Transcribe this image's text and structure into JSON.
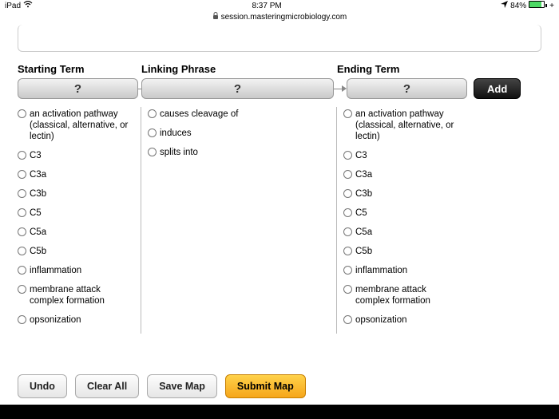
{
  "status": {
    "device": "iPad",
    "wifi": "▾",
    "time": "8:37 PM",
    "nav": "➤",
    "battery": "84%",
    "charge": "+"
  },
  "url": {
    "lock": "🔒",
    "host": "session.masteringmicrobiology.com"
  },
  "headers": {
    "start": "Starting Term",
    "link": "Linking Phrase",
    "end": "Ending Term"
  },
  "placeholder": "?",
  "add": "Add",
  "startOpts": [
    "an activation pathway (classical, alternative, or lectin)",
    "C3",
    "C3a",
    "C3b",
    "C5",
    "C5a",
    "C5b",
    "inflammation",
    "membrane attack complex formation",
    "opsonization"
  ],
  "linkOpts": [
    "causes cleavage of",
    "induces",
    "splits into"
  ],
  "endOpts": [
    "an activation pathway (classical, alternative, or lectin)",
    "C3",
    "C3a",
    "C3b",
    "C5",
    "C5a",
    "C5b",
    "inflammation",
    "membrane attack complex formation",
    "opsonization"
  ],
  "buttons": {
    "undo": "Undo",
    "clear": "Clear All",
    "save": "Save Map",
    "submit": "Submit Map"
  }
}
